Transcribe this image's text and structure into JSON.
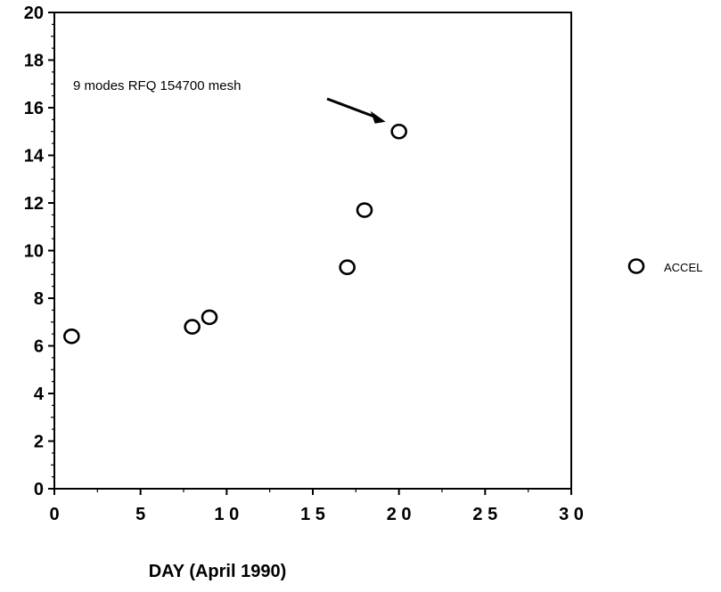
{
  "chart_data": {
    "type": "scatter",
    "title": "",
    "xlabel": "DAY (April 1990)",
    "ylabel": "",
    "xlim": [
      0,
      30
    ],
    "ylim": [
      0,
      20
    ],
    "x_ticks": [
      0,
      5,
      10,
      15,
      20,
      25,
      30
    ],
    "x_tick_labels": [
      "0",
      "5",
      "1 0",
      "1 5",
      "2 0",
      "2 5",
      "3 0"
    ],
    "y_ticks": [
      0,
      2,
      4,
      6,
      8,
      10,
      12,
      14,
      16,
      18,
      20
    ],
    "y_tick_labels": [
      "0",
      "2",
      "4",
      "6",
      "8",
      "10",
      "12",
      "14",
      "16",
      "18",
      "20"
    ],
    "grid": false,
    "legend_position": "right",
    "series": [
      {
        "name": "ACCEL",
        "marker": "open-circle",
        "x": [
          1,
          8,
          9,
          17,
          18,
          20
        ],
        "y": [
          6.4,
          6.8,
          7.2,
          9.3,
          11.7,
          15.0
        ]
      }
    ],
    "annotations": [
      {
        "text": "9 modes RFQ 154700 mesh",
        "target_x": 20,
        "target_y": 15.0
      }
    ]
  }
}
